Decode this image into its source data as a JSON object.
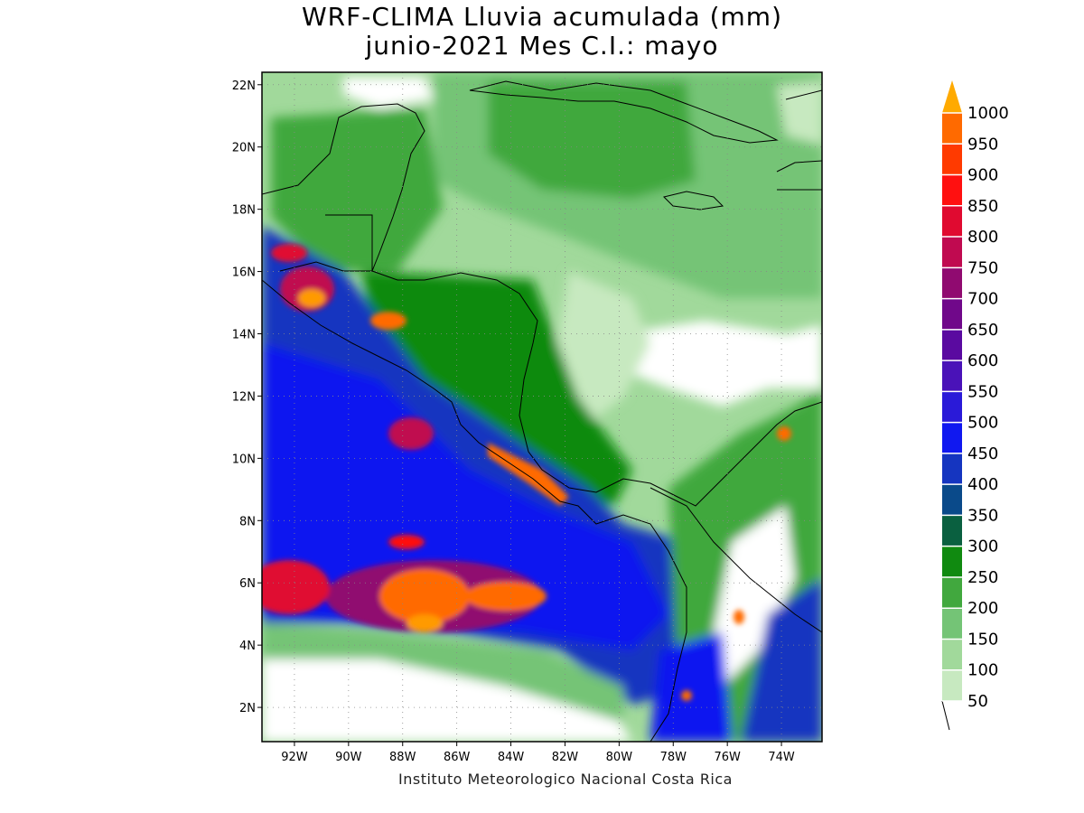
{
  "title": {
    "line1": "WRF-CLIMA Lluvia acumulada (mm)",
    "line2": "junio-2021 Mes C.I.: mayo"
  },
  "credit": "Instituto Meteorologico Nacional Costa Rica",
  "axes": {
    "lon_range": [
      -93.2,
      -72.5
    ],
    "lat_range": [
      0.9,
      22.4
    ],
    "lat_ticks": [
      {
        "value": 22,
        "label": "22N"
      },
      {
        "value": 20,
        "label": "20N"
      },
      {
        "value": 18,
        "label": "18N"
      },
      {
        "value": 16,
        "label": "16N"
      },
      {
        "value": 14,
        "label": "14N"
      },
      {
        "value": 12,
        "label": "12N"
      },
      {
        "value": 10,
        "label": "10N"
      },
      {
        "value": 8,
        "label": "8N"
      },
      {
        "value": 6,
        "label": "6N"
      },
      {
        "value": 4,
        "label": "4N"
      },
      {
        "value": 2,
        "label": "2N"
      }
    ],
    "lon_ticks": [
      {
        "value": -92,
        "label": "92W"
      },
      {
        "value": -90,
        "label": "90W"
      },
      {
        "value": -88,
        "label": "88W"
      },
      {
        "value": -86,
        "label": "86W"
      },
      {
        "value": -84,
        "label": "84W"
      },
      {
        "value": -82,
        "label": "82W"
      },
      {
        "value": -80,
        "label": "80W"
      },
      {
        "value": -78,
        "label": "78W"
      },
      {
        "value": -76,
        "label": "76W"
      },
      {
        "value": -74,
        "label": "74W"
      }
    ],
    "grid": "dotted"
  },
  "legend": {
    "placement": "right",
    "units": "mm",
    "levels": [
      {
        "label": "50",
        "color": "#c7e9c0"
      },
      {
        "label": "100",
        "color": "#a1d99b"
      },
      {
        "label": "150",
        "color": "#74c476"
      },
      {
        "label": "200",
        "color": "#41a83e"
      },
      {
        "label": "250",
        "color": "#108a10"
      },
      {
        "label": "300",
        "color": "#0a6040"
      },
      {
        "label": "350",
        "color": "#0a4a8a"
      },
      {
        "label": "400",
        "color": "#1535c0"
      },
      {
        "label": "450",
        "color": "#1018f0"
      },
      {
        "label": "500",
        "color": "#2a1ad8"
      },
      {
        "label": "550",
        "color": "#4a12b8"
      },
      {
        "label": "600",
        "color": "#5a0aa0"
      },
      {
        "label": "650",
        "color": "#70088a"
      },
      {
        "label": "700",
        "color": "#900a70"
      },
      {
        "label": "750",
        "color": "#c00a50"
      },
      {
        "label": "800",
        "color": "#e00a30"
      },
      {
        "label": "850",
        "color": "#ff1010"
      },
      {
        "label": "900",
        "color": "#ff3a00"
      },
      {
        "label": "950",
        "color": "#ff6a00"
      },
      {
        "label": "1000",
        "color": "#ff9a00"
      }
    ],
    "over_color": "#ffaa00"
  },
  "map_colors": {
    "land_outline": "#000000",
    "dry": "#ffffff"
  }
}
